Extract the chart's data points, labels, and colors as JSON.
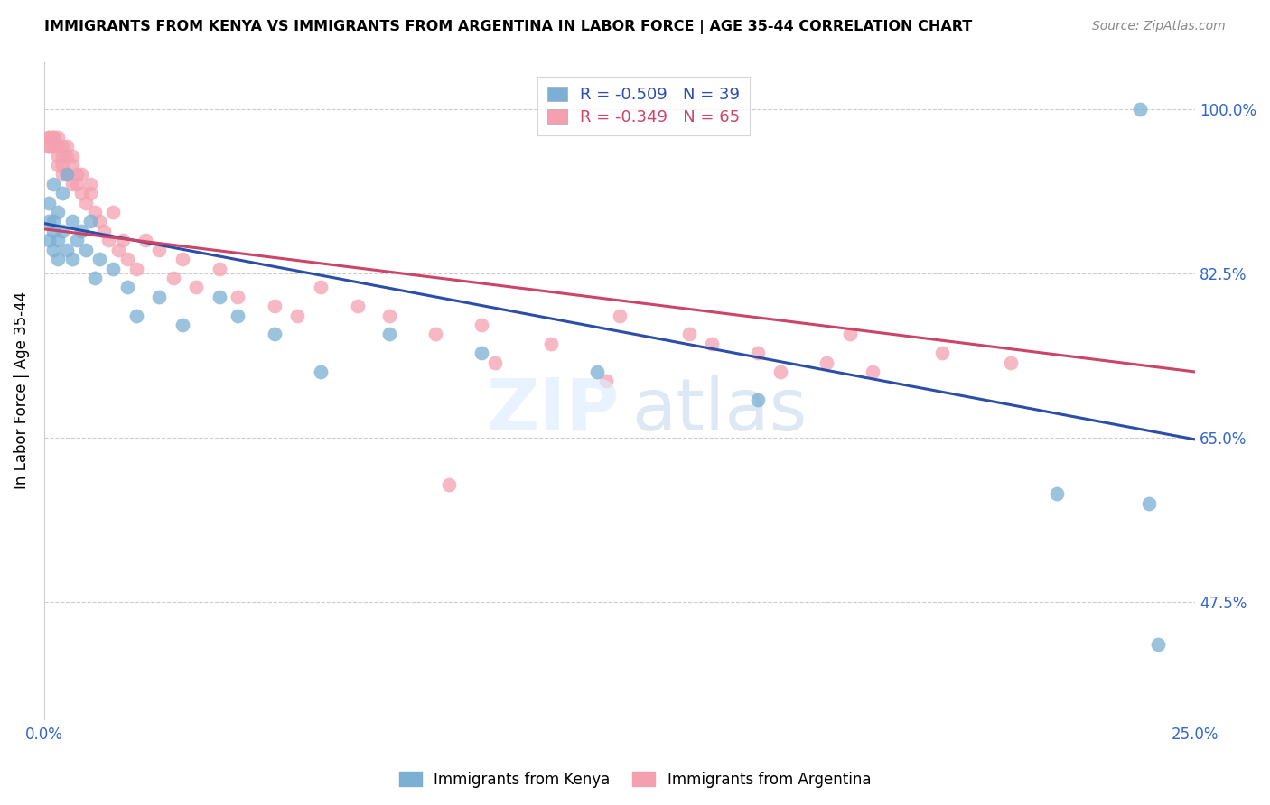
{
  "title": "IMMIGRANTS FROM KENYA VS IMMIGRANTS FROM ARGENTINA IN LABOR FORCE | AGE 35-44 CORRELATION CHART",
  "source": "Source: ZipAtlas.com",
  "ylabel": "In Labor Force | Age 35-44",
  "xlim": [
    0.0,
    0.25
  ],
  "ylim": [
    0.35,
    1.05
  ],
  "ytick_vals": [
    1.0,
    0.825,
    0.65,
    0.475
  ],
  "ytick_labels": [
    "100.0%",
    "82.5%",
    "65.0%",
    "47.5%"
  ],
  "xtick_labels": [
    "0.0%",
    "25.0%"
  ],
  "kenya_color": "#7BAFD4",
  "argentina_color": "#F4A0B0",
  "kenya_line_color": "#2B4EAA",
  "argentina_line_color": "#CC4466",
  "kenya_R": -0.509,
  "kenya_N": 39,
  "argentina_R": -0.349,
  "argentina_N": 65,
  "kenya_line_x0": 0.0,
  "kenya_line_y0": 0.878,
  "kenya_line_x1": 0.25,
  "kenya_line_y1": 0.648,
  "arg_line_x0": 0.0,
  "arg_line_y0": 0.872,
  "arg_line_x1": 0.25,
  "arg_line_y1": 0.72,
  "kenya_x": [
    0.001,
    0.001,
    0.001,
    0.002,
    0.002,
    0.002,
    0.002,
    0.003,
    0.003,
    0.003,
    0.004,
    0.004,
    0.005,
    0.005,
    0.006,
    0.006,
    0.007,
    0.008,
    0.009,
    0.01,
    0.011,
    0.012,
    0.015,
    0.018,
    0.02,
    0.025,
    0.03,
    0.038,
    0.042,
    0.05,
    0.06,
    0.075,
    0.095,
    0.12,
    0.155,
    0.22,
    0.238,
    0.24,
    0.242
  ],
  "kenya_y": [
    0.88,
    0.9,
    0.86,
    0.92,
    0.88,
    0.85,
    0.87,
    0.89,
    0.86,
    0.84,
    0.91,
    0.87,
    0.93,
    0.85,
    0.88,
    0.84,
    0.86,
    0.87,
    0.85,
    0.88,
    0.82,
    0.84,
    0.83,
    0.81,
    0.78,
    0.8,
    0.77,
    0.8,
    0.78,
    0.76,
    0.72,
    0.76,
    0.74,
    0.72,
    0.69,
    0.59,
    1.0,
    0.58,
    0.43
  ],
  "argentina_x": [
    0.001,
    0.001,
    0.001,
    0.001,
    0.002,
    0.002,
    0.002,
    0.003,
    0.003,
    0.003,
    0.003,
    0.004,
    0.004,
    0.004,
    0.004,
    0.005,
    0.005,
    0.005,
    0.006,
    0.006,
    0.006,
    0.007,
    0.007,
    0.008,
    0.008,
    0.009,
    0.01,
    0.01,
    0.011,
    0.012,
    0.013,
    0.014,
    0.015,
    0.016,
    0.017,
    0.018,
    0.02,
    0.022,
    0.025,
    0.028,
    0.03,
    0.033,
    0.038,
    0.042,
    0.05,
    0.055,
    0.06,
    0.068,
    0.075,
    0.085,
    0.095,
    0.11,
    0.125,
    0.14,
    0.155,
    0.17,
    0.175,
    0.18,
    0.195,
    0.21,
    0.122,
    0.145,
    0.16,
    0.098,
    0.088
  ],
  "argentina_y": [
    0.97,
    0.96,
    0.97,
    0.96,
    0.97,
    0.96,
    0.97,
    0.97,
    0.96,
    0.95,
    0.94,
    0.96,
    0.95,
    0.93,
    0.94,
    0.96,
    0.93,
    0.95,
    0.95,
    0.92,
    0.94,
    0.92,
    0.93,
    0.91,
    0.93,
    0.9,
    0.91,
    0.92,
    0.89,
    0.88,
    0.87,
    0.86,
    0.89,
    0.85,
    0.86,
    0.84,
    0.83,
    0.86,
    0.85,
    0.82,
    0.84,
    0.81,
    0.83,
    0.8,
    0.79,
    0.78,
    0.81,
    0.79,
    0.78,
    0.76,
    0.77,
    0.75,
    0.78,
    0.76,
    0.74,
    0.73,
    0.76,
    0.72,
    0.74,
    0.73,
    0.71,
    0.75,
    0.72,
    0.73,
    0.6
  ]
}
